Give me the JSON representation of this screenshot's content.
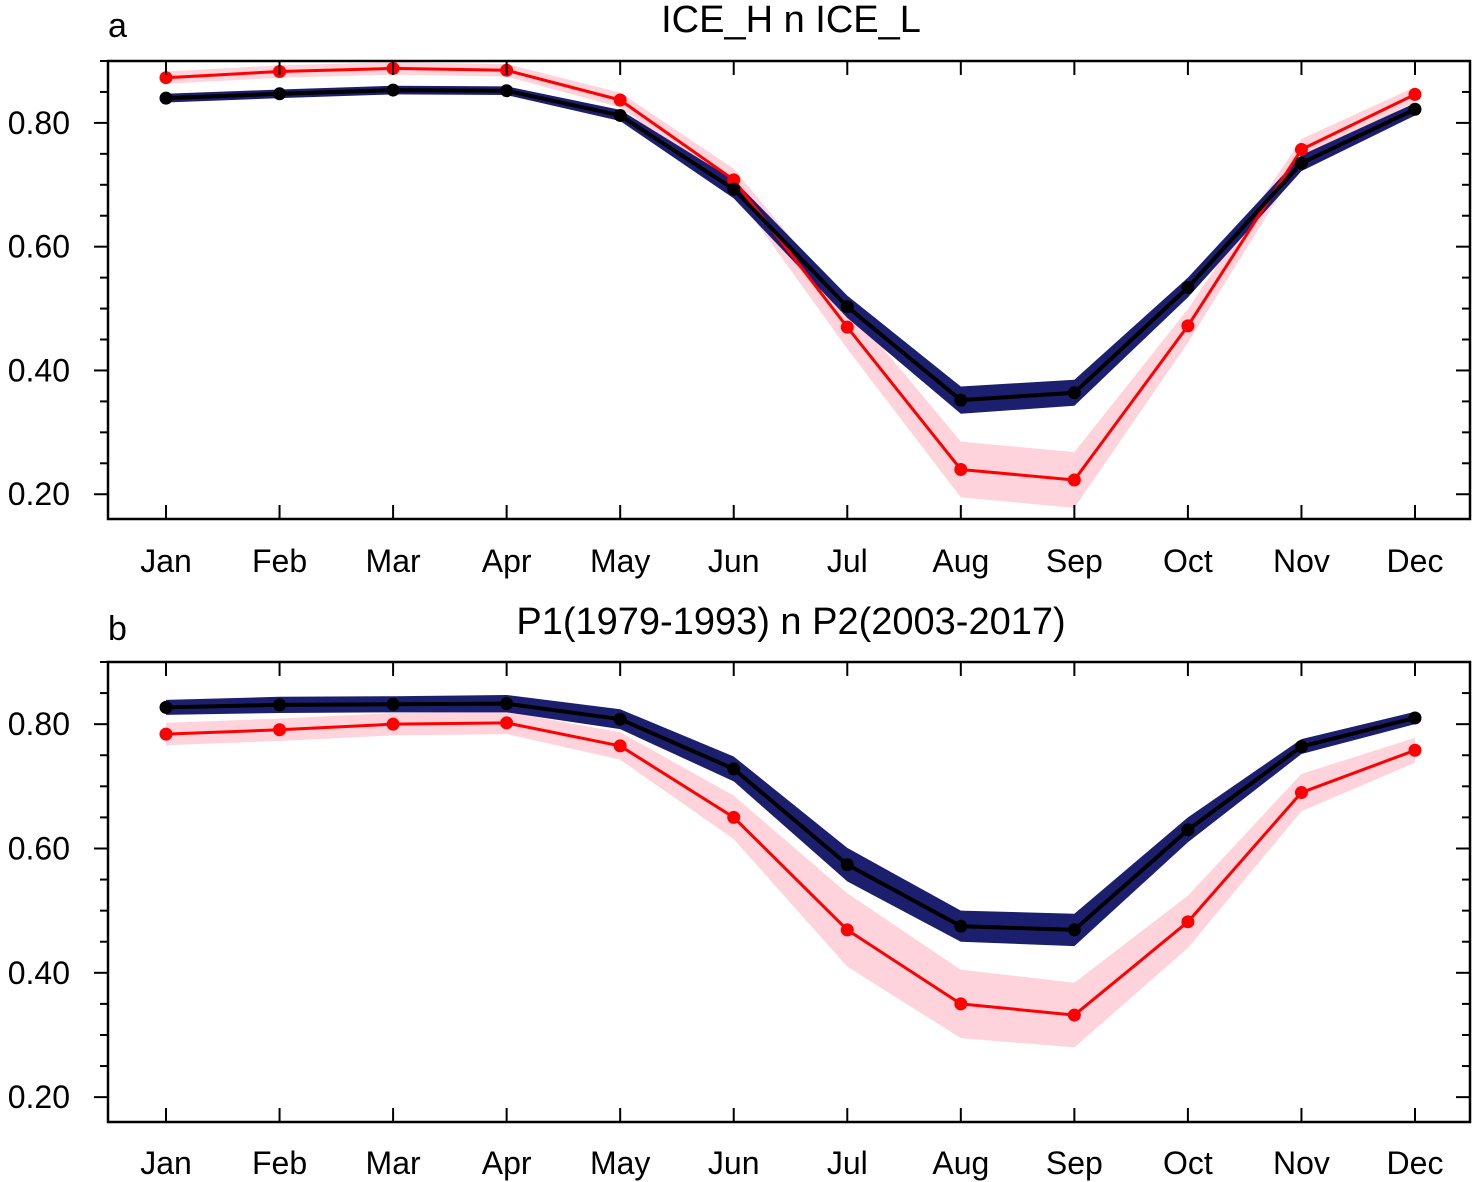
{
  "chart_data": [
    {
      "type": "line",
      "panel_label": "a",
      "title": "ICE_H n ICE_L",
      "xlabel": "",
      "ylabel": "",
      "categories": [
        "Jan",
        "Feb",
        "Mar",
        "Apr",
        "May",
        "Jun",
        "Jul",
        "Aug",
        "Sep",
        "Oct",
        "Nov",
        "Dec"
      ],
      "ylim": [
        0.16,
        0.9
      ],
      "yticks": [
        0.2,
        0.4,
        0.6,
        0.8
      ],
      "ytick_labels": [
        "0.20",
        "0.40",
        "0.60",
        "0.80"
      ],
      "grid": false,
      "series": [
        {
          "color": "#ff0000",
          "band_color": "#ffd3db",
          "values": [
            0.873,
            0.883,
            0.888,
            0.885,
            0.837,
            0.708,
            0.47,
            0.24,
            0.223,
            0.472,
            0.757,
            0.846
          ],
          "band_low": [
            0.863,
            0.873,
            0.878,
            0.875,
            0.825,
            0.69,
            0.435,
            0.195,
            0.178,
            0.445,
            0.74,
            0.834
          ],
          "band_high": [
            0.883,
            0.893,
            0.898,
            0.895,
            0.849,
            0.726,
            0.505,
            0.285,
            0.268,
            0.499,
            0.774,
            0.858
          ]
        },
        {
          "color": "#000000",
          "band_color": "#1c1f6e",
          "values": [
            0.84,
            0.847,
            0.853,
            0.852,
            0.812,
            0.693,
            0.503,
            0.352,
            0.364,
            0.534,
            0.735,
            0.822
          ],
          "band_low": [
            0.833,
            0.84,
            0.846,
            0.845,
            0.803,
            0.678,
            0.485,
            0.33,
            0.343,
            0.518,
            0.722,
            0.812
          ],
          "band_high": [
            0.847,
            0.854,
            0.86,
            0.859,
            0.821,
            0.708,
            0.521,
            0.374,
            0.385,
            0.55,
            0.748,
            0.832
          ]
        }
      ]
    },
    {
      "type": "line",
      "panel_label": "b",
      "title": "P1(1979-1993) n P2(2003-2017)",
      "xlabel": "",
      "ylabel": "",
      "categories": [
        "Jan",
        "Feb",
        "Mar",
        "Apr",
        "May",
        "Jun",
        "Jul",
        "Aug",
        "Sep",
        "Oct",
        "Nov",
        "Dec"
      ],
      "ylim": [
        0.16,
        0.9
      ],
      "yticks": [
        0.2,
        0.4,
        0.6,
        0.8
      ],
      "ytick_labels": [
        "0.20",
        "0.40",
        "0.60",
        "0.80"
      ],
      "grid": false,
      "series": [
        {
          "color": "#ff0000",
          "band_color": "#ffd3db",
          "values": [
            0.784,
            0.791,
            0.8,
            0.802,
            0.765,
            0.65,
            0.469,
            0.35,
            0.332,
            0.482,
            0.69,
            0.758
          ],
          "band_low": [
            0.766,
            0.773,
            0.782,
            0.784,
            0.743,
            0.615,
            0.41,
            0.295,
            0.28,
            0.44,
            0.66,
            0.738
          ],
          "band_high": [
            0.802,
            0.809,
            0.818,
            0.82,
            0.787,
            0.685,
            0.528,
            0.405,
            0.384,
            0.524,
            0.72,
            0.778
          ]
        },
        {
          "color": "#000000",
          "band_color": "#1c1f6e",
          "values": [
            0.827,
            0.831,
            0.832,
            0.833,
            0.808,
            0.728,
            0.574,
            0.475,
            0.469,
            0.63,
            0.764,
            0.81
          ],
          "band_low": [
            0.815,
            0.818,
            0.819,
            0.819,
            0.792,
            0.708,
            0.547,
            0.45,
            0.443,
            0.61,
            0.752,
            0.8
          ],
          "band_high": [
            0.839,
            0.844,
            0.845,
            0.847,
            0.824,
            0.748,
            0.601,
            0.5,
            0.495,
            0.65,
            0.776,
            0.82
          ]
        }
      ]
    }
  ]
}
